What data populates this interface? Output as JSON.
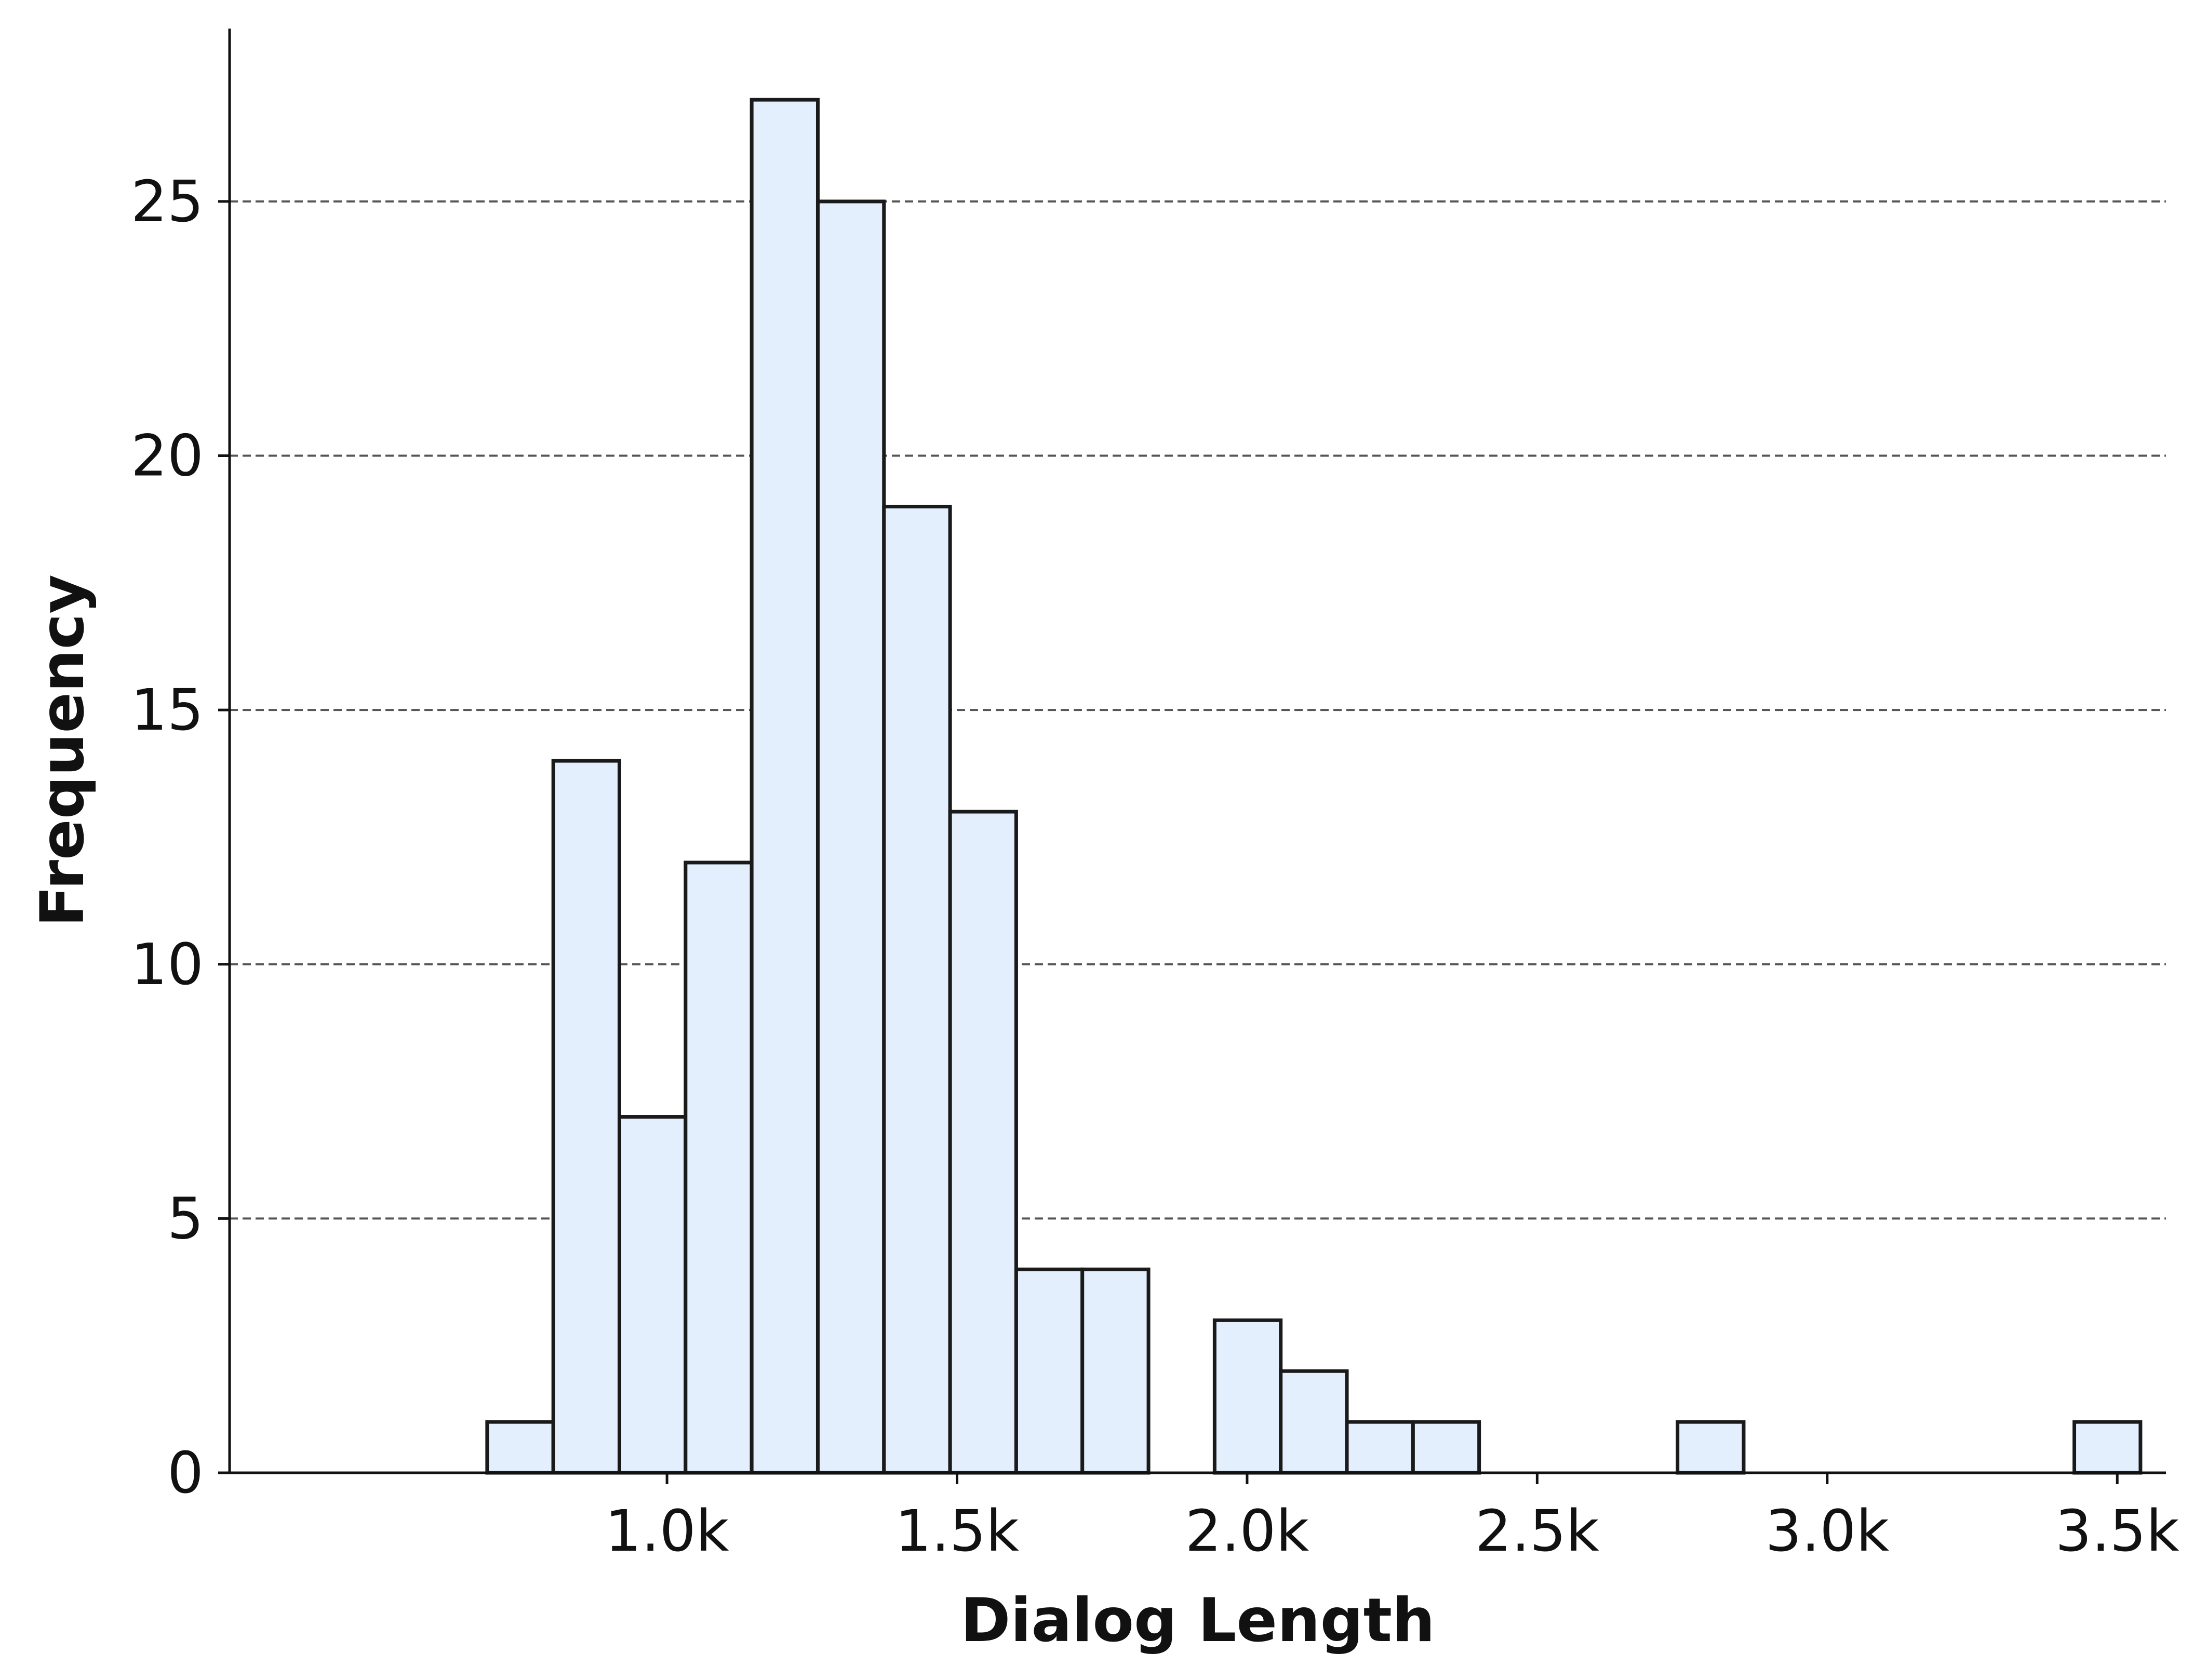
{
  "chart_data": {
    "type": "bar",
    "title": "",
    "xlabel": "Dialog Length",
    "ylabel": "Frequency",
    "bin_width": 114,
    "bins": [
      {
        "start": 690,
        "end": 804,
        "count": 1
      },
      {
        "start": 804,
        "end": 918,
        "count": 14
      },
      {
        "start": 918,
        "end": 1032,
        "count": 7
      },
      {
        "start": 1032,
        "end": 1146,
        "count": 12
      },
      {
        "start": 1146,
        "end": 1260,
        "count": 27
      },
      {
        "start": 1260,
        "end": 1374,
        "count": 25
      },
      {
        "start": 1374,
        "end": 1488,
        "count": 19
      },
      {
        "start": 1488,
        "end": 1602,
        "count": 13
      },
      {
        "start": 1602,
        "end": 1716,
        "count": 4
      },
      {
        "start": 1716,
        "end": 1830,
        "count": 4
      },
      {
        "start": 1944,
        "end": 2058,
        "count": 3
      },
      {
        "start": 2058,
        "end": 2172,
        "count": 2
      },
      {
        "start": 2172,
        "end": 2286,
        "count": 1
      },
      {
        "start": 2286,
        "end": 2400,
        "count": 1
      },
      {
        "start": 2742,
        "end": 2856,
        "count": 1
      },
      {
        "start": 3426,
        "end": 3540,
        "count": 1
      }
    ],
    "xlim": [
      246,
      3584
    ],
    "ylim": [
      0,
      28.4
    ],
    "x_ticks": [
      {
        "value": 1000,
        "label": "1.0k"
      },
      {
        "value": 1500,
        "label": "1.5k"
      },
      {
        "value": 2000,
        "label": "2.0k"
      },
      {
        "value": 2500,
        "label": "2.5k"
      },
      {
        "value": 3000,
        "label": "3.0k"
      },
      {
        "value": 3500,
        "label": "3.5k"
      }
    ],
    "y_ticks": [
      {
        "value": 0,
        "label": "0"
      },
      {
        "value": 5,
        "label": "5"
      },
      {
        "value": 10,
        "label": "10"
      },
      {
        "value": 15,
        "label": "15"
      },
      {
        "value": 20,
        "label": "20"
      },
      {
        "value": 25,
        "label": "25"
      }
    ],
    "grid": "y-dashed",
    "legend": "none",
    "colors": {
      "bar_fill": "#e3effd",
      "bar_edge": "#1a1a1a",
      "grid": "#555555",
      "axis": "#111111"
    }
  }
}
